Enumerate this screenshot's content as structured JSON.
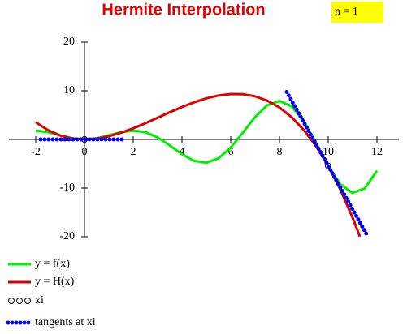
{
  "chart_data": {
    "type": "line",
    "title": "Hermite Interpolation",
    "annotation": "n = 1",
    "xlim": [
      -3.1,
      12.9
    ],
    "ylim": [
      -20,
      20
    ],
    "xticks": [
      -2,
      0,
      2,
      4,
      6,
      8,
      10,
      12
    ],
    "yticks": [
      -20,
      -10,
      10,
      20
    ],
    "series": [
      {
        "name": "y = f(x)",
        "color": "#00ee00",
        "style": "solid",
        "x": [
          -2,
          -1.5,
          -1,
          -0.5,
          0,
          0.5,
          1,
          1.5,
          2,
          2.5,
          3,
          3.5,
          4,
          4.5,
          5,
          5.5,
          6,
          6.5,
          7,
          7.5,
          8,
          8.5,
          9,
          9.5,
          10,
          10.5,
          11,
          11.5,
          12
        ],
        "values": [
          1.82,
          1.5,
          0.84,
          0.24,
          0,
          0.24,
          0.84,
          1.5,
          1.82,
          1.5,
          0.42,
          -1.23,
          -3.03,
          -4.4,
          -4.79,
          -3.88,
          -1.68,
          1.4,
          4.6,
          7.04,
          7.91,
          6.79,
          3.71,
          -0.71,
          -5.44,
          -9.24,
          -11.0,
          -10.07,
          -6.44
        ]
      },
      {
        "name": "y = H(x)",
        "color": "#dd0000",
        "style": "solid",
        "x": [
          -2,
          -1.5,
          -1,
          -0.5,
          0,
          0.5,
          1,
          1.5,
          2,
          2.5,
          3,
          3.5,
          4,
          4.5,
          5,
          5.5,
          6,
          6.5,
          7,
          7.5,
          8,
          8.5,
          9,
          9.5,
          10,
          10.5,
          11,
          11.3
        ],
        "values": [
          3.55,
          1.91,
          0.81,
          0.19,
          0,
          0.17,
          0.65,
          1.38,
          2.29,
          3.34,
          4.45,
          5.58,
          6.66,
          7.64,
          8.45,
          9.04,
          9.34,
          9.3,
          8.87,
          7.97,
          6.56,
          4.57,
          1.95,
          -1.37,
          -5.44,
          -10.32,
          -16.08,
          -19.97
        ]
      },
      {
        "name": "xi",
        "color": "#000000",
        "style": "circles",
        "x": [
          0,
          10
        ],
        "values": [
          0,
          -5.44
        ]
      },
      {
        "name": "tangents at xi",
        "color": "#0000ee",
        "style": "dots",
        "x": [
          -1.8,
          1.6,
          null,
          8.3,
          11.6
        ],
        "values": [
          0,
          0,
          null,
          9.75,
          -19.74
        ]
      }
    ]
  }
}
